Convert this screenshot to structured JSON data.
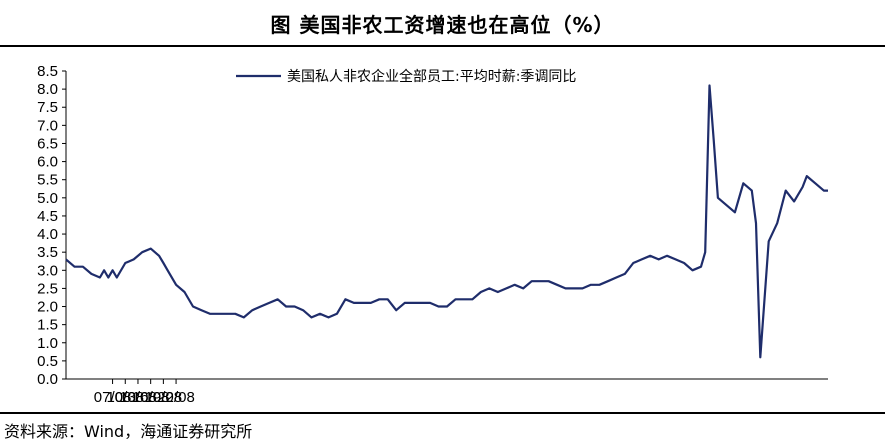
{
  "title": "图  美国非农工资增速也在高位（%）",
  "source": "资料来源：Wind，海通证券研究所",
  "chart_data": {
    "type": "line",
    "ylim": [
      0,
      8.5
    ],
    "yticks": [
      "0.0",
      "0.5",
      "1.0",
      "1.5",
      "2.0",
      "2.5",
      "3.0",
      "3.5",
      "4.0",
      "4.5",
      "5.0",
      "5.5",
      "6.0",
      "6.5",
      "7.0",
      "7.5",
      "8.0",
      "8.5"
    ],
    "xlim": [
      "2007-08",
      "2022-08"
    ],
    "xticks": [
      "07/08",
      "10/08",
      "13/08",
      "16/08",
      "19/08",
      "22/08"
    ],
    "legend_position": "top-center",
    "grid": false,
    "series": [
      {
        "name": "美国私人非农企业全部员工:平均时薪:季调同比",
        "color": "#1f2d6b",
        "points": [
          [
            "2007-08",
            3.3
          ],
          [
            "2007-10",
            3.1
          ],
          [
            "2007-12",
            3.1
          ],
          [
            "2008-02",
            2.9
          ],
          [
            "2008-04",
            2.8
          ],
          [
            "2008-05",
            3.0
          ],
          [
            "2008-06",
            2.8
          ],
          [
            "2008-07",
            3.0
          ],
          [
            "2008-08",
            2.8
          ],
          [
            "2008-10",
            3.2
          ],
          [
            "2008-12",
            3.3
          ],
          [
            "2009-02",
            3.5
          ],
          [
            "2009-04",
            3.6
          ],
          [
            "2009-05",
            3.5
          ],
          [
            "2009-06",
            3.4
          ],
          [
            "2009-07",
            3.2
          ],
          [
            "2009-08",
            3.0
          ],
          [
            "2009-10",
            2.6
          ],
          [
            "2009-12",
            2.4
          ],
          [
            "2010-02",
            2.0
          ],
          [
            "2010-04",
            1.9
          ],
          [
            "2010-06",
            1.8
          ],
          [
            "2010-08",
            1.8
          ],
          [
            "2010-10",
            1.8
          ],
          [
            "2010-12",
            1.8
          ],
          [
            "2011-02",
            1.7
          ],
          [
            "2011-04",
            1.9
          ],
          [
            "2011-06",
            2.0
          ],
          [
            "2011-08",
            2.1
          ],
          [
            "2011-10",
            2.2
          ],
          [
            "2011-12",
            2.0
          ],
          [
            "2012-02",
            2.0
          ],
          [
            "2012-04",
            1.9
          ],
          [
            "2012-06",
            1.7
          ],
          [
            "2012-08",
            1.8
          ],
          [
            "2012-10",
            1.7
          ],
          [
            "2012-12",
            1.8
          ],
          [
            "2013-02",
            2.2
          ],
          [
            "2013-04",
            2.1
          ],
          [
            "2013-06",
            2.1
          ],
          [
            "2013-08",
            2.1
          ],
          [
            "2013-10",
            2.2
          ],
          [
            "2013-12",
            2.2
          ],
          [
            "2014-02",
            1.9
          ],
          [
            "2014-04",
            2.1
          ],
          [
            "2014-06",
            2.1
          ],
          [
            "2014-08",
            2.1
          ],
          [
            "2014-10",
            2.1
          ],
          [
            "2014-12",
            2.0
          ],
          [
            "2015-02",
            2.0
          ],
          [
            "2015-04",
            2.2
          ],
          [
            "2015-06",
            2.2
          ],
          [
            "2015-08",
            2.2
          ],
          [
            "2015-10",
            2.4
          ],
          [
            "2015-12",
            2.5
          ],
          [
            "2016-02",
            2.4
          ],
          [
            "2016-04",
            2.5
          ],
          [
            "2016-06",
            2.6
          ],
          [
            "2016-08",
            2.5
          ],
          [
            "2016-10",
            2.7
          ],
          [
            "2016-12",
            2.7
          ],
          [
            "2017-02",
            2.7
          ],
          [
            "2017-04",
            2.6
          ],
          [
            "2017-06",
            2.5
          ],
          [
            "2017-08",
            2.5
          ],
          [
            "2017-10",
            2.5
          ],
          [
            "2017-12",
            2.6
          ],
          [
            "2018-02",
            2.6
          ],
          [
            "2018-04",
            2.7
          ],
          [
            "2018-06",
            2.8
          ],
          [
            "2018-08",
            2.9
          ],
          [
            "2018-10",
            3.2
          ],
          [
            "2018-12",
            3.3
          ],
          [
            "2019-02",
            3.4
          ],
          [
            "2019-04",
            3.3
          ],
          [
            "2019-06",
            3.4
          ],
          [
            "2019-08",
            3.3
          ],
          [
            "2019-10",
            3.2
          ],
          [
            "2019-12",
            3.0
          ],
          [
            "2020-02",
            3.1
          ],
          [
            "2020-03",
            3.5
          ],
          [
            "2020-04",
            8.1
          ],
          [
            "2020-05",
            6.6
          ],
          [
            "2020-06",
            5.0
          ],
          [
            "2020-08",
            4.8
          ],
          [
            "2020-10",
            4.6
          ],
          [
            "2020-12",
            5.4
          ],
          [
            "2021-02",
            5.2
          ],
          [
            "2021-03",
            4.3
          ],
          [
            "2021-04",
            0.6
          ],
          [
            "2021-05",
            2.2
          ],
          [
            "2021-06",
            3.8
          ],
          [
            "2021-08",
            4.3
          ],
          [
            "2021-10",
            5.2
          ],
          [
            "2021-12",
            4.9
          ],
          [
            "2022-02",
            5.3
          ],
          [
            "2022-03",
            5.6
          ],
          [
            "2022-05",
            5.4
          ],
          [
            "2022-07",
            5.2
          ],
          [
            "2022-08",
            5.2
          ]
        ]
      }
    ]
  }
}
